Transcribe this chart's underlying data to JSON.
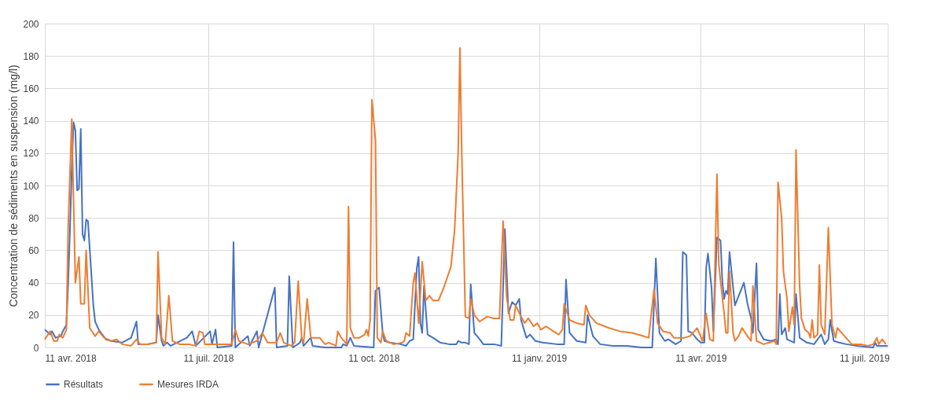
{
  "chart_data": {
    "type": "line",
    "ylabel": "Concentration de sédiments en suspension (mg/l)",
    "xlim": [
      "2018-04-11",
      "2019-07-24"
    ],
    "ylim": [
      0,
      200
    ],
    "yticks": [
      0,
      20,
      40,
      60,
      80,
      100,
      120,
      140,
      160,
      180,
      200
    ],
    "xticks": [
      {
        "value": "2018-04-11",
        "label": "11 avr. 2018"
      },
      {
        "value": "2018-07-11",
        "label": "11 juil. 2018"
      },
      {
        "value": "2018-10-11",
        "label": "11 oct. 2018"
      },
      {
        "value": "2019-01-11",
        "label": "11 janv. 2019"
      },
      {
        "value": "2019-04-11",
        "label": "11 avr. 2019"
      },
      {
        "value": "2019-07-11",
        "label": "11 juil. 2019"
      }
    ],
    "grid": true,
    "legend": "bottom",
    "line_style": "solid",
    "marker": "none",
    "series": [
      {
        "name": "Résultats",
        "color": "#4472c4",
        "x": [
          "2018-04-11",
          "2018-04-14",
          "2018-04-15",
          "2018-04-17",
          "2018-04-20",
          "2018-04-21",
          "2018-04-23",
          "2018-04-24",
          "2018-04-25",
          "2018-04-26",
          "2018-04-27",
          "2018-04-28",
          "2018-04-29",
          "2018-04-30",
          "2018-05-01",
          "2018-05-02",
          "2018-05-03",
          "2018-05-04",
          "2018-05-05",
          "2018-05-08",
          "2018-05-09",
          "2018-05-11",
          "2018-05-13",
          "2018-05-15",
          "2018-05-18",
          "2018-05-24",
          "2018-05-29",
          "2018-06-01",
          "2018-06-02",
          "2018-06-07",
          "2018-06-12",
          "2018-06-13",
          "2018-06-15",
          "2018-06-16",
          "2018-06-18",
          "2018-06-20",
          "2018-06-29",
          "2018-07-02",
          "2018-07-04",
          "2018-07-12",
          "2018-07-13",
          "2018-07-15",
          "2018-07-16",
          "2018-07-24",
          "2018-07-25",
          "2018-07-26",
          "2018-08-02",
          "2018-08-03",
          "2018-08-07",
          "2018-08-08",
          "2018-08-17",
          "2018-08-18",
          "2018-08-24",
          "2018-08-25",
          "2018-08-27",
          "2018-08-31",
          "2018-09-01",
          "2018-09-02",
          "2018-09-06",
          "2018-09-07",
          "2018-09-14",
          "2018-09-23",
          "2018-09-24",
          "2018-09-26",
          "2018-09-28",
          "2018-09-30",
          "2018-10-11",
          "2018-10-12",
          "2018-10-14",
          "2018-10-16",
          "2018-10-17",
          "2018-10-20",
          "2018-10-26",
          "2018-10-29",
          "2018-10-31",
          "2018-11-02",
          "2018-11-04",
          "2018-11-05",
          "2018-11-06",
          "2018-11-07",
          "2018-11-08",
          "2018-11-10",
          "2018-11-13",
          "2018-11-17",
          "2018-11-22",
          "2018-11-26",
          "2018-11-27",
          "2018-11-29",
          "2018-12-01",
          "2018-12-03",
          "2018-12-04",
          "2018-12-06",
          "2018-12-09",
          "2018-12-11",
          "2018-12-17",
          "2018-12-21",
          "2018-12-23",
          "2018-12-25",
          "2018-12-27",
          "2018-12-29",
          "2018-12-31",
          "2019-01-01",
          "2019-01-04",
          "2019-01-06",
          "2019-01-09",
          "2019-01-13",
          "2019-01-21",
          "2019-01-25",
          "2019-01-26",
          "2019-01-28",
          "2019-02-01",
          "2019-02-06",
          "2019-02-07",
          "2019-02-10",
          "2019-02-14",
          "2019-02-21",
          "2019-03-01",
          "2019-03-09",
          "2019-03-15",
          "2019-03-17",
          "2019-03-19",
          "2019-03-22",
          "2019-03-24",
          "2019-03-28",
          "2019-03-31",
          "2019-04-01",
          "2019-04-03",
          "2019-04-04",
          "2019-04-06",
          "2019-04-09",
          "2019-04-11",
          "2019-04-13",
          "2019-04-14",
          "2019-04-15",
          "2019-04-17",
          "2019-04-18",
          "2019-04-20",
          "2019-04-22",
          "2019-04-23",
          "2019-04-24",
          "2019-04-25",
          "2019-04-26",
          "2019-04-27",
          "2019-04-30",
          "2019-05-05",
          "2019-05-07",
          "2019-05-09",
          "2019-05-10",
          "2019-05-12",
          "2019-05-13",
          "2019-05-16",
          "2019-05-20",
          "2019-05-23",
          "2019-05-24",
          "2019-05-25",
          "2019-05-26",
          "2019-05-28",
          "2019-05-29",
          "2019-06-02",
          "2019-06-03",
          "2019-06-05",
          "2019-06-09",
          "2019-06-13",
          "2019-06-17",
          "2019-06-19",
          "2019-06-21",
          "2019-06-22",
          "2019-06-24",
          "2019-06-27",
          "2019-07-01",
          "2019-07-07",
          "2019-07-16",
          "2019-07-17",
          "2019-07-18",
          "2019-07-24"
        ],
        "values": [
          11,
          8,
          10,
          6,
          7,
          10,
          14,
          40,
          73,
          110,
          139,
          134,
          97,
          98,
          135,
          70,
          66,
          79,
          78,
          26,
          16,
          11,
          8,
          5,
          4,
          3,
          6,
          16,
          2,
          2,
          3,
          20,
          4,
          1,
          3,
          1,
          6,
          10,
          1,
          10,
          2,
          11,
          0,
          1,
          65,
          0,
          7,
          1,
          10,
          0,
          37,
          0,
          1,
          44,
          0,
          3,
          6,
          1,
          6,
          1,
          0,
          0,
          2,
          1,
          6,
          1,
          0,
          35,
          37,
          9,
          4,
          3,
          2,
          1,
          4,
          5,
          49,
          56,
          15,
          9,
          38,
          8,
          6,
          3,
          2,
          2,
          4,
          3,
          3,
          2,
          39,
          9,
          5,
          2,
          2,
          1,
          73,
          21,
          28,
          26,
          30,
          17,
          6,
          8,
          4,
          3,
          2,
          2,
          42,
          9,
          4,
          3,
          20,
          7,
          2,
          1,
          1,
          0,
          0,
          55,
          9,
          4,
          5,
          2,
          4,
          59,
          57,
          10,
          9,
          5,
          3,
          3,
          49,
          58,
          37,
          10,
          68,
          66,
          41,
          30,
          35,
          33,
          59,
          26,
          40,
          27,
          18,
          9,
          52,
          11,
          5,
          4,
          5,
          2,
          33,
          8,
          12,
          5,
          3,
          33,
          6,
          3,
          2,
          8,
          2,
          5,
          17,
          4,
          3,
          2,
          1,
          0,
          3,
          1,
          1
        ]
      },
      {
        "name": "Mesures IRDA",
        "color": "#ed7d31",
        "x": [
          "2018-04-11",
          "2018-04-14",
          "2018-04-16",
          "2018-04-18",
          "2018-04-19",
          "2018-04-21",
          "2018-04-23",
          "2018-04-24",
          "2018-04-26",
          "2018-04-28",
          "2018-04-30",
          "2018-05-01",
          "2018-05-03",
          "2018-05-04",
          "2018-05-06",
          "2018-05-09",
          "2018-05-11",
          "2018-05-14",
          "2018-05-18",
          "2018-05-21",
          "2018-05-24",
          "2018-05-29",
          "2018-06-01",
          "2018-06-03",
          "2018-06-08",
          "2018-06-12",
          "2018-06-13",
          "2018-06-15",
          "2018-06-17",
          "2018-06-19",
          "2018-06-21",
          "2018-06-25",
          "2018-06-30",
          "2018-07-04",
          "2018-07-06",
          "2018-07-08",
          "2018-07-09",
          "2018-07-16",
          "2018-07-24",
          "2018-07-26",
          "2018-07-28",
          "2018-08-02",
          "2018-08-07",
          "2018-08-10",
          "2018-08-13",
          "2018-08-18",
          "2018-08-20",
          "2018-08-22",
          "2018-08-24",
          "2018-08-26",
          "2018-08-28",
          "2018-08-30",
          "2018-09-01",
          "2018-09-02",
          "2018-09-04",
          "2018-09-06",
          "2018-09-11",
          "2018-09-14",
          "2018-09-16",
          "2018-09-20",
          "2018-09-21",
          "2018-09-23",
          "2018-09-26",
          "2018-09-27",
          "2018-09-28",
          "2018-09-30",
          "2018-10-03",
          "2018-10-06",
          "2018-10-07",
          "2018-10-08",
          "2018-10-09",
          "2018-10-10",
          "2018-10-12",
          "2018-10-13",
          "2018-10-15",
          "2018-10-16",
          "2018-10-18",
          "2018-10-22",
          "2018-10-27",
          "2018-10-28",
          "2018-10-29",
          "2018-10-31",
          "2018-11-02",
          "2018-11-03",
          "2018-11-05",
          "2018-11-07",
          "2018-11-09",
          "2018-11-11",
          "2018-11-13",
          "2018-11-16",
          "2018-11-19",
          "2018-11-23",
          "2018-11-25",
          "2018-11-27",
          "2018-11-28",
          "2018-11-29",
          "2018-12-01",
          "2018-12-03",
          "2018-12-04",
          "2018-12-06",
          "2018-12-09",
          "2018-12-13",
          "2018-12-17",
          "2018-12-20",
          "2018-12-22",
          "2018-12-24",
          "2018-12-26",
          "2018-12-28",
          "2018-12-29",
          "2019-01-01",
          "2019-01-03",
          "2019-01-05",
          "2019-01-08",
          "2019-01-10",
          "2019-01-12",
          "2019-01-15",
          "2019-01-19",
          "2019-01-22",
          "2019-01-24",
          "2019-01-25",
          "2019-01-28",
          "2019-02-01",
          "2019-02-05",
          "2019-02-06",
          "2019-02-08",
          "2019-02-12",
          "2019-02-19",
          "2019-02-25",
          "2019-03-04",
          "2019-03-10",
          "2019-03-13",
          "2019-03-16",
          "2019-03-18",
          "2019-03-21",
          "2019-03-25",
          "2019-03-27",
          "2019-04-02",
          "2019-04-05",
          "2019-04-09",
          "2019-04-12",
          "2019-04-14",
          "2019-04-16",
          "2019-04-18",
          "2019-04-20",
          "2019-04-21",
          "2019-04-22",
          "2019-04-24",
          "2019-04-25",
          "2019-04-26",
          "2019-04-27",
          "2019-04-29",
          "2019-04-30",
          "2019-05-02",
          "2019-05-04",
          "2019-05-07",
          "2019-05-09",
          "2019-05-10",
          "2019-05-12",
          "2019-05-16",
          "2019-05-19",
          "2019-05-22",
          "2019-05-23",
          "2019-05-24",
          "2019-05-26",
          "2019-05-27",
          "2019-05-29",
          "2019-05-30",
          "2019-06-01",
          "2019-06-02",
          "2019-06-03",
          "2019-06-05",
          "2019-06-06",
          "2019-06-08",
          "2019-06-10",
          "2019-06-11",
          "2019-06-12",
          "2019-06-13",
          "2019-06-15",
          "2019-06-16",
          "2019-06-17",
          "2019-06-19",
          "2019-06-21",
          "2019-06-23",
          "2019-06-25",
          "2019-06-26",
          "2019-06-30",
          "2019-07-04",
          "2019-07-09",
          "2019-07-13",
          "2019-07-16",
          "2019-07-18",
          "2019-07-19",
          "2019-07-21",
          "2019-07-23"
        ],
        "values": [
          5,
          10,
          4,
          4,
          8,
          6,
          11,
          74,
          141,
          40,
          56,
          27,
          27,
          60,
          12,
          7,
          10,
          6,
          4,
          5,
          2,
          1,
          5,
          2,
          2,
          3,
          59,
          6,
          2,
          32,
          4,
          2,
          2,
          1,
          10,
          9,
          2,
          2,
          2,
          11,
          4,
          2,
          4,
          9,
          3,
          3,
          9,
          3,
          2,
          1,
          3,
          41,
          5,
          3,
          30,
          6,
          6,
          2,
          3,
          1,
          10,
          6,
          2,
          87,
          12,
          6,
          6,
          8,
          11,
          7,
          17,
          153,
          128,
          6,
          3,
          10,
          4,
          2,
          3,
          4,
          9,
          7,
          40,
          46,
          15,
          53,
          29,
          32,
          29,
          29,
          37,
          50,
          72,
          120,
          185,
          120,
          19,
          18,
          30,
          20,
          16,
          19,
          18,
          18,
          78,
          31,
          17,
          17,
          26,
          19,
          15,
          18,
          13,
          15,
          11,
          13,
          10,
          8,
          11,
          27,
          17,
          15,
          14,
          26,
          20,
          15,
          12,
          10,
          9,
          7,
          6,
          36,
          15,
          10,
          9,
          6,
          6,
          7,
          12,
          4,
          21,
          5,
          4,
          107,
          52,
          41,
          21,
          9,
          9,
          47,
          9,
          4,
          7,
          12,
          7,
          4,
          38,
          4,
          2,
          3,
          4,
          2,
          102,
          80,
          47,
          30,
          10,
          25,
          14,
          122,
          38,
          18,
          11,
          9,
          6,
          17,
          6,
          8,
          51,
          14,
          8,
          74,
          14,
          6,
          12,
          7,
          2,
          2,
          1,
          2,
          6,
          2,
          5,
          2
        ]
      }
    ]
  }
}
